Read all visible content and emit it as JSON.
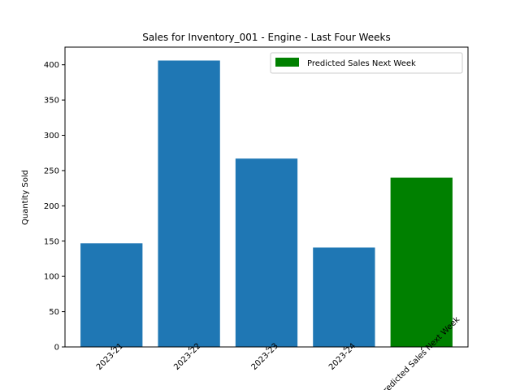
{
  "chart_data": {
    "type": "bar",
    "title": "Sales for Inventory_001 - Engine - Last Four Weeks",
    "xlabel": "",
    "ylabel": "Quantity Sold",
    "categories": [
      "2023-21",
      "2023-22",
      "2023-23",
      "2023-24",
      "Predicted Sales Next Week"
    ],
    "values": [
      147,
      406,
      267,
      141,
      240
    ],
    "bar_colors": [
      "#1f77b4",
      "#1f77b4",
      "#1f77b4",
      "#1f77b4",
      "#008000"
    ],
    "ylim": [
      0,
      425
    ],
    "yticks": [
      0,
      50,
      100,
      150,
      200,
      250,
      300,
      350,
      400
    ],
    "grid": false,
    "xtick_rotation_deg": 45,
    "legend": {
      "placement": "top-right",
      "entries": [
        {
          "label": "Predicted Sales Next Week",
          "color": "#008000"
        }
      ]
    }
  }
}
